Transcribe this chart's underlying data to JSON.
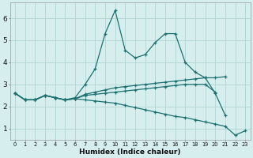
{
  "xlabel": "Humidex (Indice chaleur)",
  "xlim": [
    -0.5,
    23.5
  ],
  "ylim": [
    0.5,
    6.7
  ],
  "bg_color": "#d6eeee",
  "grid_color": "#b8d8d8",
  "line_color": "#1e7070",
  "lines": [
    {
      "x": [
        0,
        1,
        2,
        3,
        4,
        5,
        6,
        7,
        8,
        9,
        10,
        11,
        12,
        13,
        14,
        15,
        16,
        17,
        18,
        19,
        20,
        21
      ],
      "y": [
        2.6,
        2.3,
        2.3,
        2.5,
        2.4,
        2.3,
        2.4,
        3.0,
        3.7,
        5.3,
        6.35,
        4.55,
        4.2,
        4.35,
        4.9,
        5.3,
        5.3,
        4.0,
        3.55,
        3.3,
        2.6,
        1.6
      ]
    },
    {
      "x": [
        0,
        1,
        2,
        3,
        4,
        5,
        6,
        7,
        8,
        9,
        10,
        11,
        12,
        13,
        14,
        15,
        16,
        17,
        18,
        19,
        20,
        21
      ],
      "y": [
        2.6,
        2.3,
        2.3,
        2.5,
        2.4,
        2.3,
        2.35,
        2.55,
        2.65,
        2.75,
        2.85,
        2.9,
        2.95,
        3.0,
        3.05,
        3.1,
        3.15,
        3.2,
        3.25,
        3.3,
        3.3,
        3.35
      ]
    },
    {
      "x": [
        0,
        1,
        2,
        3,
        4,
        5,
        6,
        7,
        8,
        9,
        10,
        11,
        12,
        13,
        14,
        15,
        16,
        17,
        18,
        19,
        20
      ],
      "y": [
        2.6,
        2.3,
        2.3,
        2.5,
        2.4,
        2.3,
        2.35,
        2.5,
        2.55,
        2.6,
        2.65,
        2.7,
        2.75,
        2.8,
        2.85,
        2.9,
        2.95,
        3.0,
        3.0,
        3.0,
        2.65
      ]
    },
    {
      "x": [
        0,
        1,
        2,
        3,
        4,
        5,
        6,
        7,
        8,
        9,
        10,
        11,
        12,
        13,
        14,
        15,
        16,
        17,
        18,
        19,
        20,
        21,
        22,
        23
      ],
      "y": [
        2.6,
        2.3,
        2.3,
        2.5,
        2.4,
        2.3,
        2.35,
        2.3,
        2.25,
        2.2,
        2.15,
        2.05,
        1.95,
        1.85,
        1.75,
        1.65,
        1.55,
        1.5,
        1.4,
        1.3,
        1.2,
        1.1,
        0.7,
        0.9
      ]
    }
  ],
  "xtick_labels": [
    "0",
    "1",
    "2",
    "3",
    "4",
    "5",
    "6",
    "7",
    "8",
    "9",
    "10",
    "11",
    "12",
    "13",
    "14",
    "15",
    "16",
    "17",
    "18",
    "19",
    "20",
    "21",
    "22",
    "23"
  ],
  "ytick_labels": [
    "1",
    "2",
    "3",
    "4",
    "5",
    "6"
  ],
  "ytick_vals": [
    1,
    2,
    3,
    4,
    5,
    6
  ]
}
